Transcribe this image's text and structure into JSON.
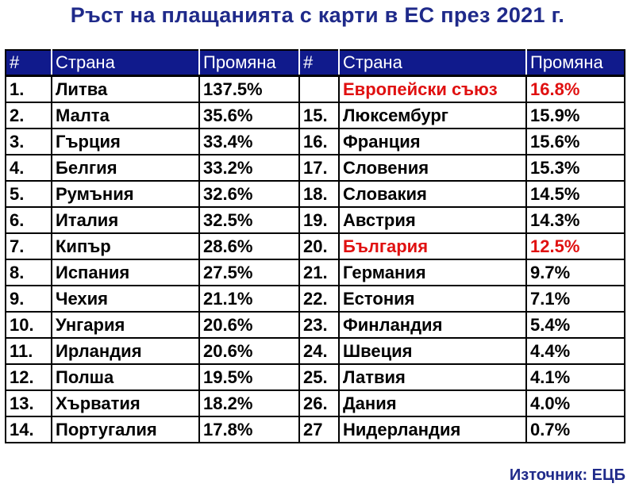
{
  "title": "Ръст на плащанията с карти в ЕС през 2021 г.",
  "source": "Източник: ЕЦБ",
  "colors": {
    "title": "#1f2a8a",
    "header_bg": "#101a8c",
    "highlight": "#e01010"
  },
  "chart_data": {
    "type": "table",
    "title": "Ръст на плащанията с карти в ЕС през 2021 г.",
    "columns": [
      "#",
      "Страна",
      "Промяна",
      "#",
      "Страна",
      "Промяна"
    ],
    "left_rows": [
      {
        "rank": "1.",
        "country": "Литва",
        "change": "137.5%"
      },
      {
        "rank": "2.",
        "country": "Малта",
        "change": "35.6%"
      },
      {
        "rank": "3.",
        "country": "Гърция",
        "change": "33.4%"
      },
      {
        "rank": "4.",
        "country": "Белгия",
        "change": "33.2%"
      },
      {
        "rank": "5.",
        "country": "Румъния",
        "change": "32.6%"
      },
      {
        "rank": "6.",
        "country": "Италия",
        "change": "32.5%"
      },
      {
        "rank": "7.",
        "country": "Кипър",
        "change": "28.6%"
      },
      {
        "rank": "8.",
        "country": "Испания",
        "change": "27.5%"
      },
      {
        "rank": "9.",
        "country": "Чехия",
        "change": "21.1%"
      },
      {
        "rank": "10.",
        "country": "Унгария",
        "change": "20.6%"
      },
      {
        "rank": "11.",
        "country": "Ирландия",
        "change": "20.6%"
      },
      {
        "rank": "12.",
        "country": "Полша",
        "change": "19.5%"
      },
      {
        "rank": "13.",
        "country": "Хърватия",
        "change": "18.2%"
      },
      {
        "rank": "14.",
        "country": "Португалия",
        "change": "17.8%"
      }
    ],
    "right_rows": [
      {
        "rank": "",
        "country": "Европейски съюз",
        "change": "16.8%",
        "highlight": true
      },
      {
        "rank": "15.",
        "country": "Люксембург",
        "change": "15.9%"
      },
      {
        "rank": "16.",
        "country": "Франция",
        "change": "15.6%"
      },
      {
        "rank": "17.",
        "country": "Словения",
        "change": "15.3%"
      },
      {
        "rank": "18.",
        "country": "Словакия",
        "change": "14.5%"
      },
      {
        "rank": "19.",
        "country": "Австрия",
        "change": "14.3%"
      },
      {
        "rank": "20.",
        "country": "България",
        "change": "12.5%",
        "highlight": true
      },
      {
        "rank": "21.",
        "country": "Германия",
        "change": "9.7%"
      },
      {
        "rank": "22.",
        "country": "Естония",
        "change": "7.1%"
      },
      {
        "rank": "23.",
        "country": "Финландия",
        "change": "5.4%"
      },
      {
        "rank": "24.",
        "country": "Швеция",
        "change": "4.4%"
      },
      {
        "rank": "25.",
        "country": "Латвия",
        "change": "4.1%"
      },
      {
        "rank": "26.",
        "country": "Дания",
        "change": "4.0%"
      },
      {
        "rank": "27",
        "country": "Нидерландия",
        "change": "0.7%"
      }
    ]
  }
}
